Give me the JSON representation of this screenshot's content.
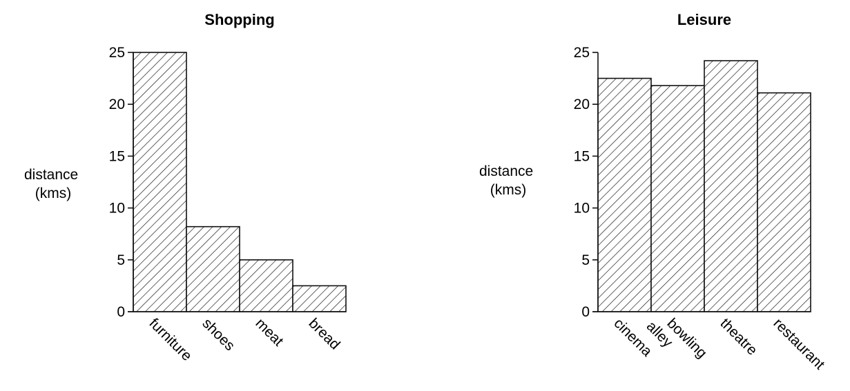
{
  "chart_data": [
    {
      "type": "bar",
      "title": "Shopping",
      "ylabel": [
        "distance",
        "(kms)"
      ],
      "xlabel": "",
      "categories": [
        [
          "furniture"
        ],
        [
          "shoes"
        ],
        [
          "meat"
        ],
        [
          "bread"
        ]
      ],
      "values": [
        25,
        8.2,
        5,
        2.5
      ],
      "ylim": [
        0,
        25
      ],
      "yticks": [
        "0",
        "5",
        "10",
        "15",
        "20",
        "25"
      ],
      "grid": false,
      "bar_fill": "diagonal hatching",
      "colors": {
        "stroke": "#111111",
        "fill": "#ffffff"
      }
    },
    {
      "type": "bar",
      "title": "Leisure",
      "ylabel": [
        "distance",
        "(kms)"
      ],
      "xlabel": "",
      "categories": [
        [
          "cinema"
        ],
        [
          "bowling",
          "alley"
        ],
        [
          "theatre"
        ],
        [
          "restaurant"
        ]
      ],
      "values": [
        22.5,
        21.8,
        24.2,
        21.1
      ],
      "ylim": [
        0,
        25
      ],
      "yticks": [
        "0",
        "5",
        "10",
        "15",
        "20",
        "25"
      ],
      "grid": false,
      "bar_fill": "diagonal hatching",
      "colors": {
        "stroke": "#111111",
        "fill": "#ffffff"
      }
    }
  ]
}
